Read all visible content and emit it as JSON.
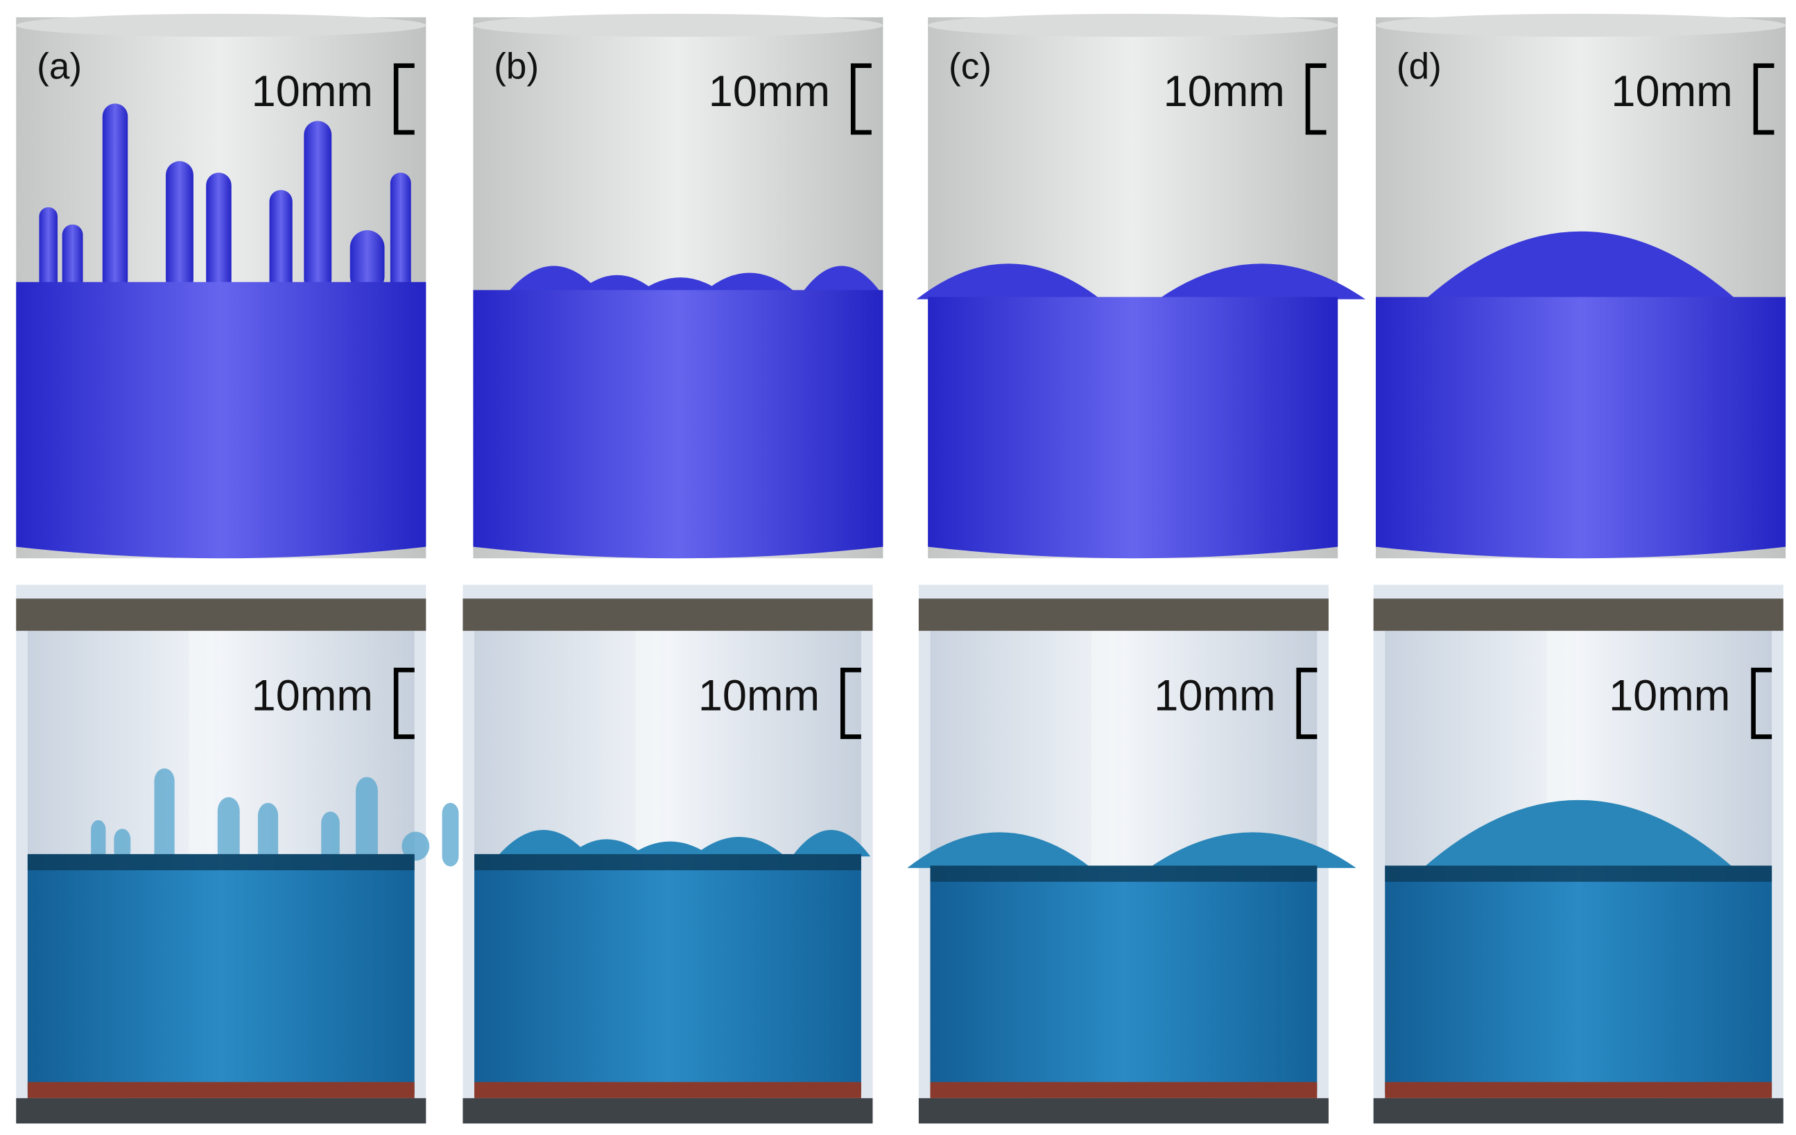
{
  "panels": [
    {
      "label": "(a)",
      "sim_scale": "10mm",
      "photo_scale": "10mm"
    },
    {
      "label": "(b)",
      "sim_scale": "10mm",
      "photo_scale": "10mm"
    },
    {
      "label": "(c)",
      "sim_scale": "10mm",
      "photo_scale": "10mm"
    },
    {
      "label": "(d)",
      "sim_scale": "10mm",
      "photo_scale": "10mm"
    }
  ]
}
